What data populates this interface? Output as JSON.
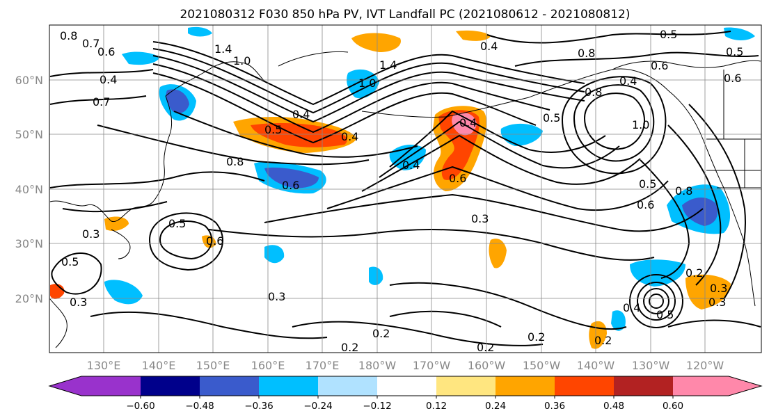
{
  "title": "2021080312 F030 850 hPa PV, IVT Landfall PC (2021080612 - 2021080812)",
  "axes": {
    "lat_ticks": [
      "60°N",
      "50°N",
      "40°N",
      "30°N",
      "20°N"
    ],
    "lon_ticks": [
      "130°E",
      "140°E",
      "150°E",
      "160°E",
      "170°E",
      "180°W",
      "170°W",
      "160°W",
      "150°W",
      "140°W",
      "130°W",
      "120°W"
    ],
    "grid": true
  },
  "colorbar": {
    "ticks": [
      "−0.60",
      "−0.48",
      "−0.36",
      "−0.24",
      "−0.12",
      "0.12",
      "0.24",
      "0.36",
      "0.48",
      "0.60"
    ],
    "colors": [
      "#9932cc",
      "#00008b",
      "#3a5bcc",
      "#00bfff",
      "#b0e2ff",
      "#ffffff",
      "#ffe680",
      "#ffa500",
      "#ff4500",
      "#b22222",
      "#ff88aa"
    ],
    "extend": "both"
  },
  "contour_labels": [
    "0.8",
    "0.7",
    "0.6",
    "1.4",
    "1.0",
    "0.4",
    "0.7",
    "0.5",
    "0.4",
    "0.8",
    "0.6",
    "0.4",
    "1.0",
    "1.4",
    "0.4",
    "0.5",
    "0.4",
    "0.8",
    "0.6",
    "0.6",
    "0.5",
    "0.3",
    "0.3",
    "0.2",
    "0.2",
    "0.2",
    "0.2",
    "0.3",
    "0.5",
    "0.2",
    "0.3",
    "0.4",
    "0.5",
    "0.8",
    "0.8",
    "0.6",
    "0.5",
    "0.4",
    "0.6",
    "0.5",
    "0.4",
    "0.6",
    "0.5",
    "1.0",
    "0.2",
    "0.3",
    "0.3"
  ]
}
